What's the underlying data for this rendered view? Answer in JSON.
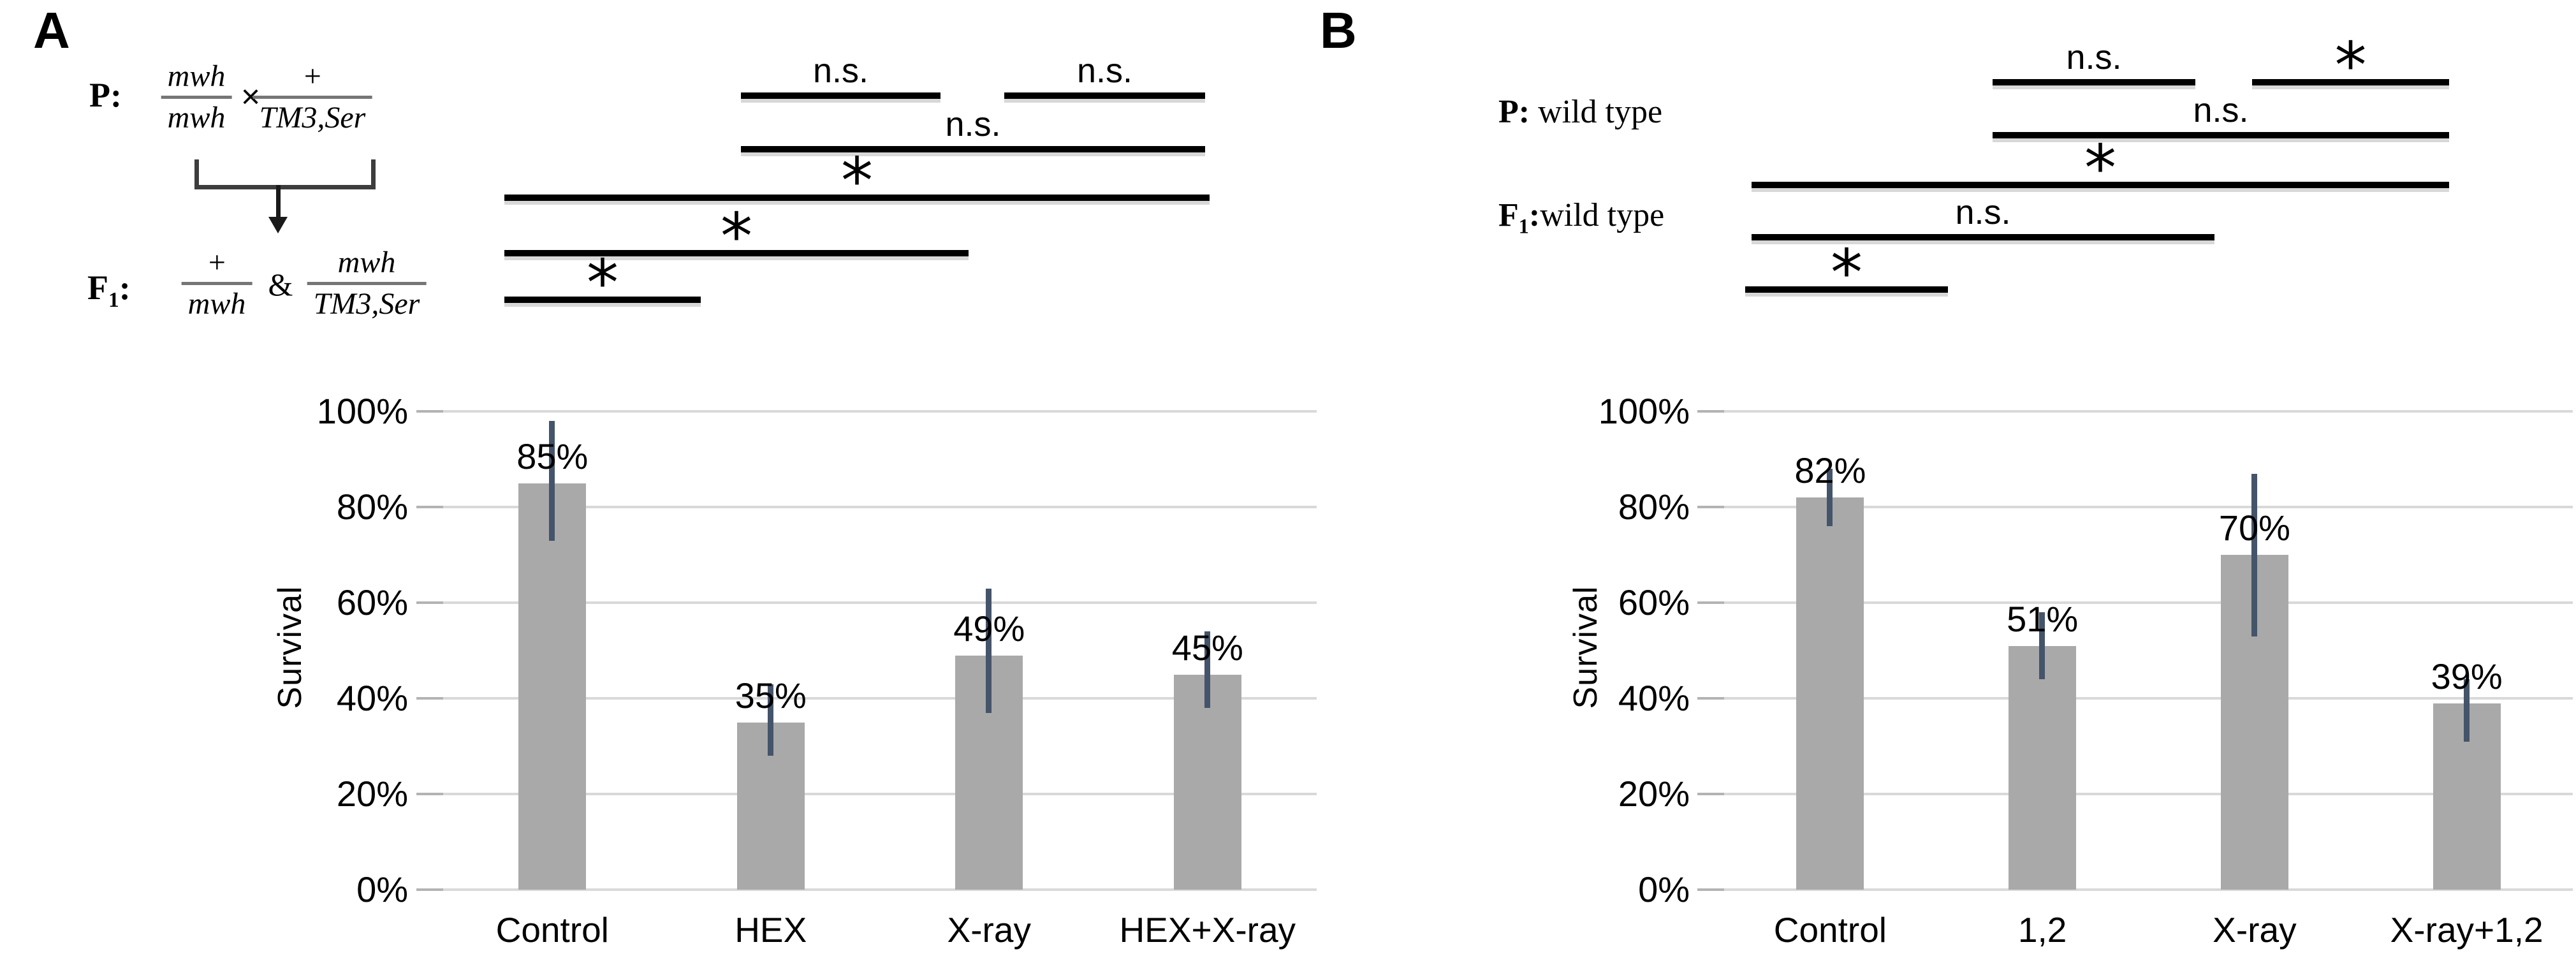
{
  "colors": {
    "bar_fill": "#a9a9a9",
    "error_bar": "#44546a",
    "gridline": "#d9d9d9",
    "significance_line": "#000000"
  },
  "panel_a": {
    "letter": "A",
    "cross": {
      "p_label": "P:",
      "parent_fraction_1": {
        "num": "mwh",
        "den": "mwh"
      },
      "times_symbol": "×",
      "parent_fraction_2": {
        "num": "+",
        "den": "TM3,Ser"
      },
      "f1_prefix": "F",
      "f1_sub": "1",
      "f1_colon": ":",
      "f1_fraction_1": {
        "num": "+",
        "den": "mwh"
      },
      "ampersand": "&",
      "f1_fraction_2": {
        "num": "mwh",
        "den": "TM3,Ser"
      }
    }
  },
  "panel_b": {
    "letter": "B",
    "p_label_bold": "P:",
    "p_label_rest": " wild type",
    "f1_prefix": "F",
    "f1_sub": "1",
    "f1_colon": ":",
    "f1_label_rest": "wild type"
  },
  "chart_data": [
    {
      "panel": "A",
      "type": "bar",
      "title": "",
      "xlabel": "",
      "ylabel": "Survival",
      "ylim": [
        0,
        100
      ],
      "grid": true,
      "legend": false,
      "yticks": [
        0,
        20,
        40,
        60,
        80,
        100
      ],
      "ytick_labels": [
        "0%",
        "20%",
        "40%",
        "60%",
        "80%",
        "100%"
      ],
      "categories": [
        "Control",
        "HEX",
        "X-ray",
        "HEX+X-ray"
      ],
      "values": [
        85,
        35,
        49,
        45
      ],
      "value_labels": [
        "85%",
        "35%",
        "49%",
        "45%"
      ],
      "error_low": [
        73,
        28,
        37,
        38
      ],
      "error_high": [
        98,
        43,
        63,
        54
      ],
      "significance": [
        {
          "label": "n.s.",
          "pair": "HEX vs X-ray",
          "x1": 1162,
          "x2": 1475,
          "y": 150
        },
        {
          "label": "n.s.",
          "pair": "X-ray vs HEX+X-ray",
          "x1": 1575,
          "x2": 1890,
          "y": 150
        },
        {
          "label": "n.s.",
          "pair": "HEX vs HEX+X-ray",
          "x1": 1162,
          "x2": 1890,
          "y": 234
        },
        {
          "label": "*",
          "pair": "Control vs HEX+X-ray",
          "x1": 791,
          "x2": 1897,
          "y": 310
        },
        {
          "label": "*",
          "pair": "Control vs X-ray",
          "x1": 791,
          "x2": 1519,
          "y": 397
        },
        {
          "label": "*",
          "pair": "Control vs HEX",
          "x1": 791,
          "x2": 1099,
          "y": 470
        }
      ]
    },
    {
      "panel": "B",
      "type": "bar",
      "title": "",
      "xlabel": "",
      "ylabel": "Survival",
      "ylim": [
        0,
        100
      ],
      "grid": true,
      "legend": false,
      "yticks": [
        0,
        20,
        40,
        60,
        80,
        100
      ],
      "ytick_labels": [
        "0%",
        "20%",
        "40%",
        "60%",
        "80%",
        "100%"
      ],
      "categories": [
        "Control",
        "1,2",
        "X-ray",
        "X-ray+1,2"
      ],
      "values": [
        82,
        51,
        70,
        39
      ],
      "value_labels": [
        "82%",
        "51%",
        "70%",
        "39%"
      ],
      "error_low": [
        76,
        44,
        53,
        31
      ],
      "error_high": [
        88,
        58,
        87,
        44
      ],
      "significance": [
        {
          "label": "n.s.",
          "pair": "1,2 vs X-ray",
          "x1": 3125,
          "x2": 3443,
          "y": 129
        },
        {
          "label": "*",
          "pair": "X-ray vs X-ray+1,2",
          "x1": 3532,
          "x2": 3841,
          "y": 129
        },
        {
          "label": "n.s.",
          "pair": "1,2 vs X-ray+1,2",
          "x1": 3125,
          "x2": 3841,
          "y": 212
        },
        {
          "label": "*",
          "pair": "Control vs X-ray+1,2",
          "x1": 2747,
          "x2": 3841,
          "y": 290
        },
        {
          "label": "n.s.",
          "pair": "Control vs X-ray",
          "x1": 2747,
          "x2": 3473,
          "y": 372
        },
        {
          "label": "*",
          "pair": "Control vs 1,2",
          "x1": 2737,
          "x2": 3055,
          "y": 454
        }
      ]
    }
  ]
}
